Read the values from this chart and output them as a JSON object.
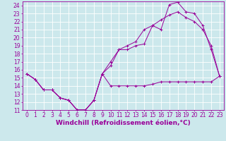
{
  "background_color": "#cce8ec",
  "grid_color": "#ffffff",
  "line_color": "#990099",
  "xlabel": "Windchill (Refroidissement éolien,°C)",
  "xlim": [
    -0.5,
    23.5
  ],
  "ylim": [
    11,
    24.5
  ],
  "xticks": [
    0,
    1,
    2,
    3,
    4,
    5,
    6,
    7,
    8,
    9,
    10,
    11,
    12,
    13,
    14,
    15,
    16,
    17,
    18,
    19,
    20,
    21,
    22,
    23
  ],
  "yticks": [
    11,
    12,
    13,
    14,
    15,
    16,
    17,
    18,
    19,
    20,
    21,
    22,
    23,
    24
  ],
  "line1_x": [
    0,
    1,
    2,
    3,
    4,
    5,
    6,
    7,
    8,
    9,
    10,
    11,
    12,
    13,
    14,
    15,
    16,
    17,
    18,
    19,
    20,
    21,
    22,
    23
  ],
  "line1_y": [
    15.5,
    14.8,
    13.5,
    13.5,
    12.5,
    12.2,
    11.0,
    11.0,
    12.2,
    15.5,
    14.0,
    14.0,
    14.0,
    14.0,
    14.0,
    14.2,
    14.5,
    14.5,
    14.5,
    14.5,
    14.5,
    14.5,
    14.5,
    15.2
  ],
  "line2_x": [
    0,
    1,
    2,
    3,
    4,
    5,
    6,
    7,
    8,
    9,
    10,
    11,
    12,
    13,
    14,
    15,
    16,
    17,
    18,
    19,
    20,
    21,
    22,
    23
  ],
  "line2_y": [
    15.5,
    14.8,
    13.5,
    13.5,
    12.5,
    12.2,
    11.0,
    11.0,
    12.2,
    15.5,
    16.5,
    18.5,
    18.5,
    19.0,
    19.2,
    21.5,
    21.0,
    24.1,
    24.4,
    23.2,
    23.0,
    21.5,
    18.5,
    15.2
  ],
  "line3_x": [
    0,
    1,
    2,
    3,
    4,
    5,
    6,
    7,
    8,
    9,
    10,
    11,
    12,
    13,
    14,
    15,
    16,
    17,
    18,
    19,
    20,
    21,
    22,
    23
  ],
  "line3_y": [
    15.5,
    14.8,
    13.5,
    13.5,
    12.5,
    12.2,
    11.0,
    11.0,
    12.2,
    15.5,
    17.0,
    18.5,
    19.0,
    19.5,
    21.0,
    21.5,
    22.2,
    22.8,
    23.2,
    22.5,
    22.0,
    21.0,
    19.0,
    15.2
  ],
  "tick_font_size": 5.5,
  "label_font_size": 6.5
}
